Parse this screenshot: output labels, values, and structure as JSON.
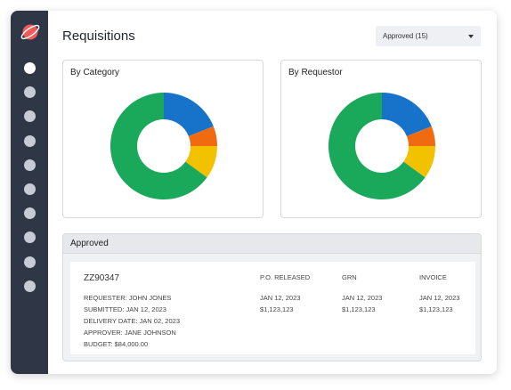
{
  "page": {
    "title": "Requisitions",
    "filter": {
      "selected": "Approved (15)"
    }
  },
  "colors": {
    "sidebar": "#2f3646",
    "logo": "#f05a5b",
    "blue": "#1673c9",
    "orange": "#f06a0f",
    "yellow": "#f2c200",
    "green": "#1aa85a"
  },
  "sidebar": {
    "items": [
      "nav-1",
      "nav-2",
      "nav-3",
      "nav-4",
      "nav-5",
      "nav-6",
      "nav-7",
      "nav-8",
      "nav-9",
      "nav-10"
    ],
    "active_index": 0
  },
  "cards": [
    {
      "title": "By Category",
      "slices": [
        {
          "color": "blue",
          "value": 0.19
        },
        {
          "color": "orange",
          "value": 0.06
        },
        {
          "color": "yellow",
          "value": 0.1
        },
        {
          "color": "green",
          "value": 0.65
        }
      ]
    },
    {
      "title": "By Requestor",
      "slices": [
        {
          "color": "blue",
          "value": 0.19
        },
        {
          "color": "orange",
          "value": 0.06
        },
        {
          "color": "yellow",
          "value": 0.1
        },
        {
          "color": "green",
          "value": 0.65
        }
      ]
    }
  ],
  "approved": {
    "header": "Approved",
    "id": "ZZ90347",
    "details": [
      {
        "label": "REQUESTER:",
        "value": "JOHN JONES"
      },
      {
        "label": "SUBMITTED:",
        "value": "JAN 12, 2023"
      },
      {
        "label": "DELIVERY DATE:",
        "value": "JAN 02, 2023"
      },
      {
        "label": "APPROVER:",
        "value": "JANE JOHNSON"
      },
      {
        "label": "BUDGET:",
        "value": "$84,000.00"
      }
    ],
    "columns": [
      {
        "header": "P.O. RELEASED",
        "date": "JAN 12, 2023",
        "amount": "$1,123,123"
      },
      {
        "header": "GRN",
        "date": "JAN 12, 2023",
        "amount": "$1,123,123"
      },
      {
        "header": "INVOICE",
        "date": "JAN 12, 2023",
        "amount": "$1,123,123"
      }
    ]
  }
}
